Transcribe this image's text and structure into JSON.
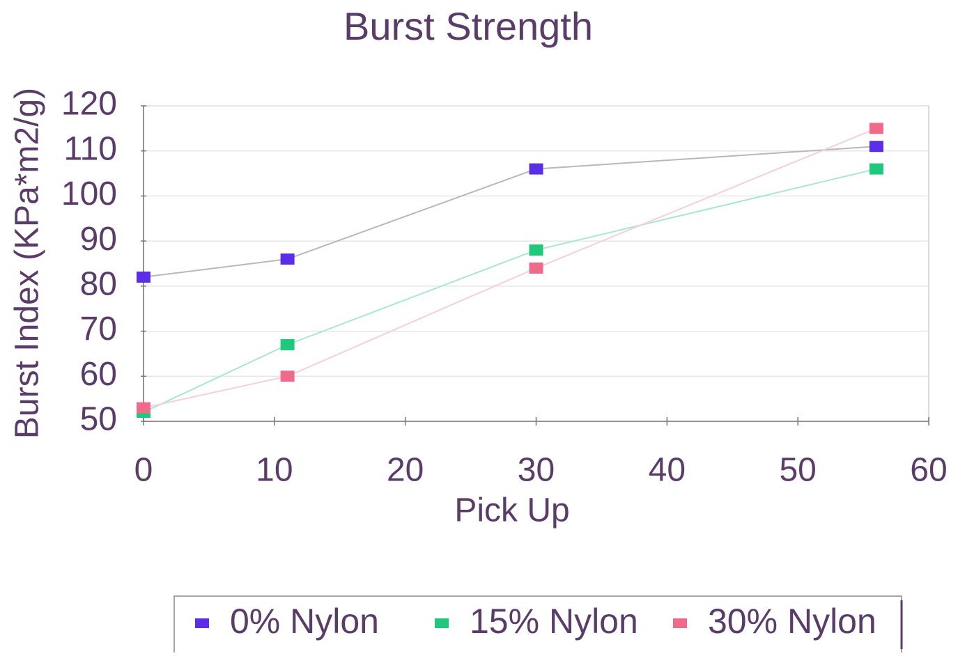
{
  "chart_data": {
    "type": "line",
    "title": "Burst Strength",
    "x_label": "Pick Up",
    "y_label": "Burst Index (KPa*m2/g)",
    "x": [
      0,
      11,
      30,
      56
    ],
    "series": [
      {
        "name": "0% Nylon",
        "color": "#5a2ee6",
        "line_color": "#b8b8b8",
        "values": [
          82,
          86,
          106,
          111
        ]
      },
      {
        "name": "15% Nylon",
        "color": "#1ec97b",
        "line_color": "#a8e8d0",
        "values": [
          52,
          67,
          88,
          106
        ]
      },
      {
        "name": "30% Nylon",
        "color": "#f06a8c",
        "line_color": "#f4d0da",
        "values": [
          53,
          60,
          84,
          115
        ]
      }
    ],
    "xlim": [
      0,
      60
    ],
    "xticks": [
      0,
      10,
      20,
      30,
      40,
      50,
      60
    ],
    "ylim": [
      50,
      120
    ],
    "yticks": [
      50,
      60,
      70,
      80,
      90,
      100,
      110,
      120
    ],
    "grid": true,
    "legend": "bottom"
  }
}
